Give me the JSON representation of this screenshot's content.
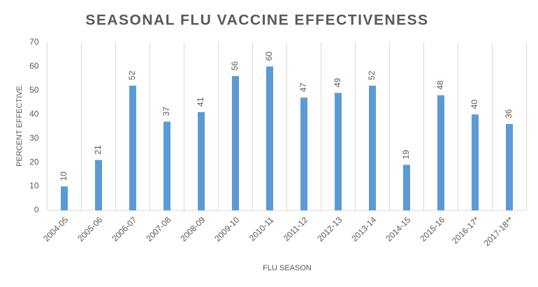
{
  "chart_data": {
    "type": "bar",
    "title": "SEASONAL FLU VACCINE EFFECTIVENESS",
    "x_label": "FLU SEASON",
    "y_label": "PERCENT EFFECTIVE",
    "categories": [
      "2004-05",
      "2005-06",
      "2006-07",
      "2007-08",
      "2008-09",
      "2009-10",
      "2010-11",
      "2011-12",
      "2012-13",
      "2013-14",
      "2014-15",
      "2015-16",
      "2016-17*",
      "2017-18**"
    ],
    "values": [
      10,
      21,
      52,
      37,
      41,
      56,
      60,
      47,
      49,
      52,
      19,
      48,
      40,
      36
    ],
    "color": "#5b9bd5",
    "ylim": [
      0,
      70
    ],
    "yticks": [
      0,
      10,
      20,
      30,
      40,
      50,
      60,
      70
    ]
  }
}
